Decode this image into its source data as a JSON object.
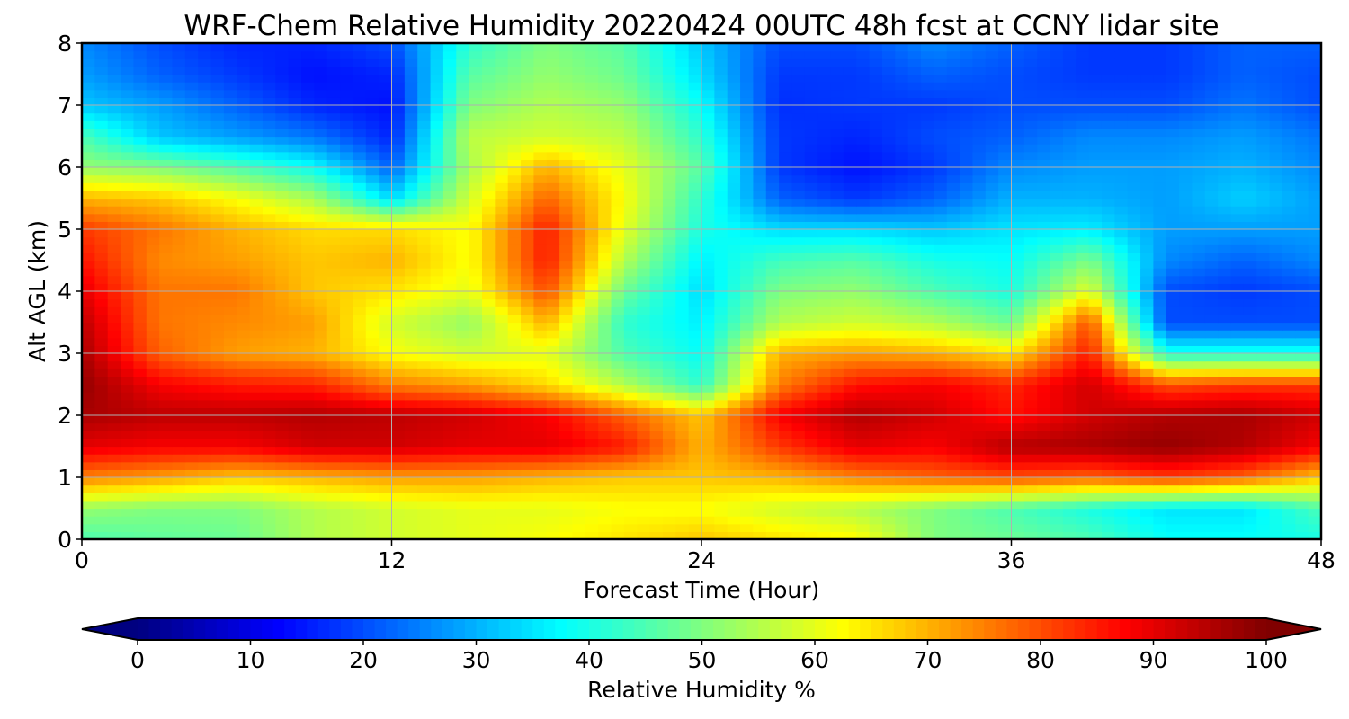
{
  "chart_data": {
    "type": "heatmap",
    "title": "WRF-Chem Relative Humidity 20220424 00UTC 48h fcst at CCNY lidar site",
    "xlabel": "Forecast Time (Hour)",
    "ylabel": "Alt AGL (km)",
    "xlim": [
      0,
      48
    ],
    "ylim": [
      0,
      8
    ],
    "x_ticks": [
      0,
      12,
      24,
      36,
      48
    ],
    "y_ticks": [
      0,
      1,
      2,
      3,
      4,
      5,
      6,
      7,
      8
    ],
    "grid": true,
    "colormap": "jet",
    "colorbar": {
      "label": "Relative Humidity %",
      "range": [
        0,
        100
      ],
      "ticks": [
        0,
        10,
        20,
        30,
        40,
        50,
        60,
        70,
        80,
        90,
        100
      ],
      "orientation": "horizontal",
      "extend": "both"
    },
    "x": [
      0,
      3,
      6,
      9,
      12,
      15,
      18,
      21,
      24,
      27,
      30,
      33,
      36,
      39,
      42,
      45,
      48
    ],
    "y": [
      0,
      0.5,
      1,
      1.5,
      2,
      2.5,
      3,
      3.5,
      4,
      4.5,
      5,
      5.5,
      6,
      6.5,
      7,
      7.5,
      8
    ],
    "z": [
      [
        45,
        47,
        48,
        55,
        58,
        60,
        62,
        65,
        68,
        65,
        63,
        50,
        48,
        45,
        38,
        38,
        40
      ],
      [
        52,
        50,
        50,
        55,
        58,
        60,
        60,
        62,
        62,
        58,
        55,
        50,
        45,
        40,
        35,
        35,
        45
      ],
      [
        75,
        72,
        68,
        70,
        72,
        72,
        70,
        68,
        68,
        70,
        75,
        78,
        80,
        78,
        82,
        78,
        68
      ],
      [
        90,
        88,
        88,
        92,
        92,
        90,
        90,
        85,
        70,
        82,
        90,
        88,
        95,
        96,
        98,
        95,
        88
      ],
      [
        96,
        94,
        94,
        95,
        94,
        92,
        88,
        78,
        68,
        88,
        95,
        92,
        86,
        92,
        95,
        96,
        92
      ],
      [
        98,
        88,
        85,
        84,
        75,
        72,
        66,
        55,
        42,
        75,
        86,
        88,
        84,
        92,
        80,
        82,
        82
      ],
      [
        96,
        78,
        72,
        70,
        62,
        58,
        60,
        45,
        38,
        70,
        72,
        70,
        65,
        85,
        40,
        40,
        40
      ],
      [
        94,
        76,
        74,
        72,
        58,
        52,
        70,
        42,
        36,
        55,
        58,
        55,
        48,
        80,
        20,
        20,
        20
      ],
      [
        90,
        76,
        76,
        68,
        65,
        60,
        80,
        48,
        34,
        50,
        52,
        45,
        40,
        60,
        20,
        18,
        20
      ],
      [
        86,
        74,
        72,
        68,
        70,
        62,
        85,
        55,
        36,
        44,
        46,
        40,
        38,
        50,
        26,
        22,
        26
      ],
      [
        82,
        76,
        70,
        66,
        66,
        62,
        85,
        60,
        40,
        34,
        34,
        32,
        35,
        36,
        28,
        28,
        28
      ],
      [
        70,
        68,
        62,
        54,
        34,
        58,
        78,
        62,
        42,
        22,
        18,
        22,
        30,
        30,
        28,
        33,
        28
      ],
      [
        52,
        50,
        45,
        38,
        22,
        54,
        70,
        60,
        46,
        18,
        14,
        18,
        26,
        28,
        28,
        30,
        26
      ],
      [
        45,
        32,
        28,
        24,
        16,
        56,
        58,
        56,
        42,
        18,
        16,
        20,
        22,
        26,
        26,
        28,
        24
      ],
      [
        32,
        28,
        22,
        16,
        14,
        50,
        55,
        52,
        38,
        17,
        18,
        18,
        20,
        20,
        20,
        24,
        20
      ],
      [
        28,
        22,
        18,
        14,
        16,
        46,
        52,
        48,
        34,
        18,
        18,
        22,
        20,
        18,
        18,
        22,
        20
      ],
      [
        26,
        20,
        16,
        16,
        20,
        42,
        50,
        46,
        32,
        20,
        20,
        26,
        22,
        18,
        18,
        22,
        22
      ]
    ]
  }
}
